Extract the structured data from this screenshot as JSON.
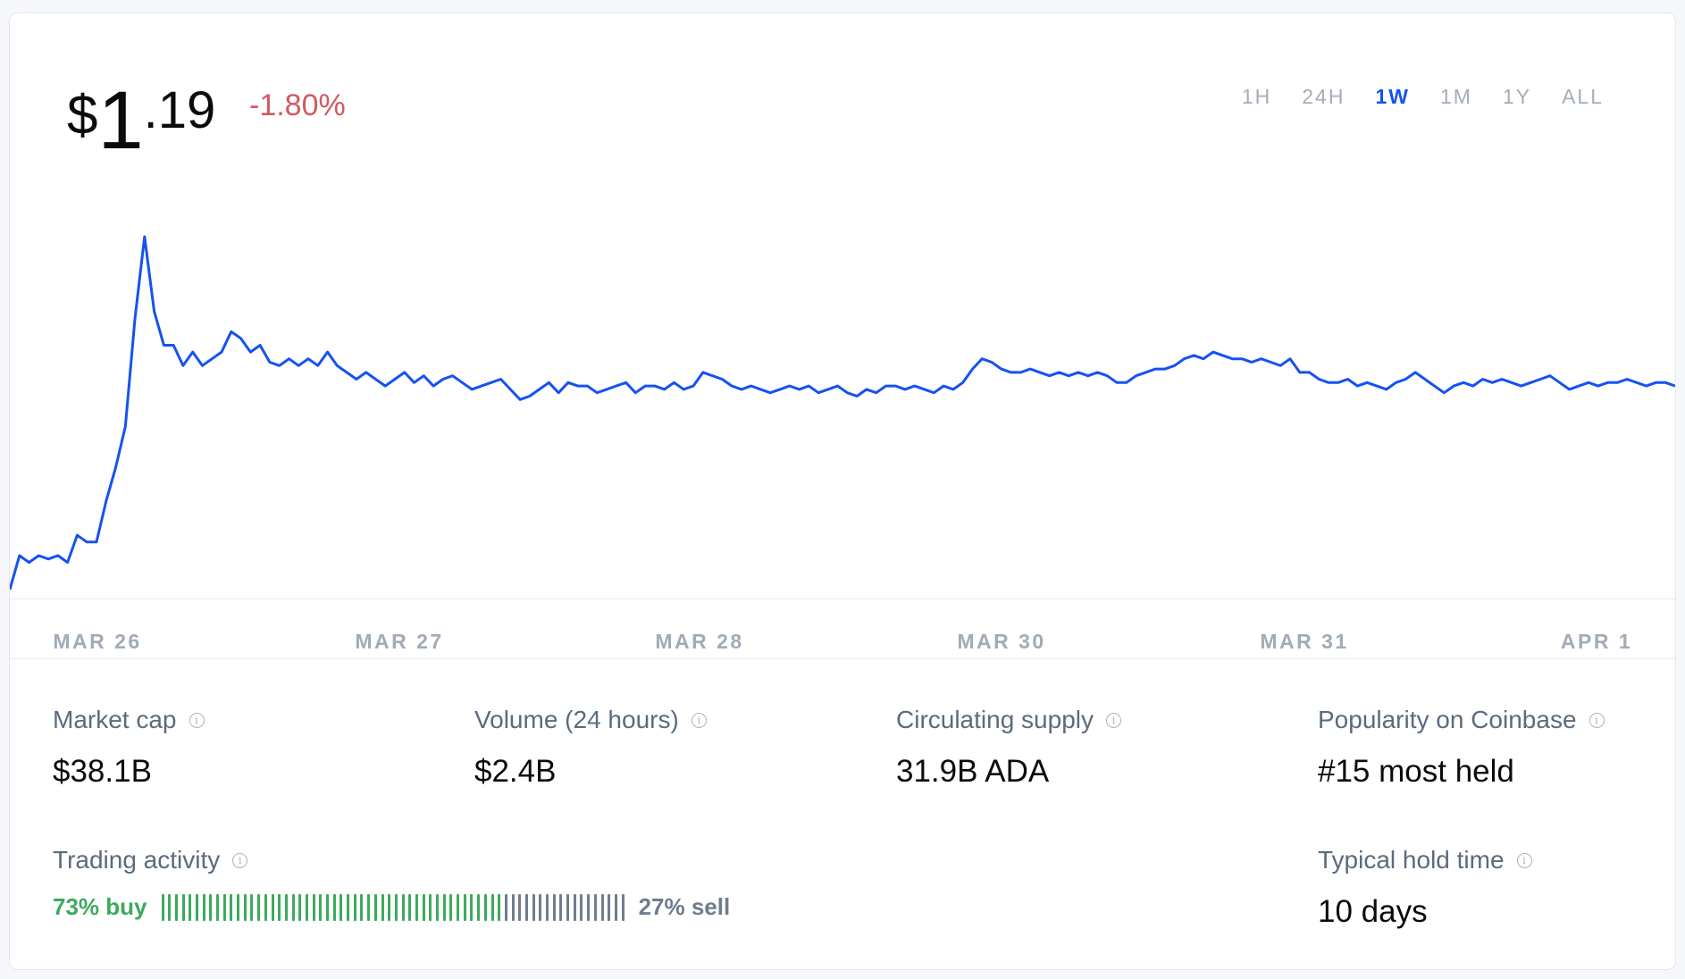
{
  "price": {
    "currency": "$",
    "whole": "1",
    "fraction": ".19"
  },
  "change": "-1.80%",
  "ranges": [
    "1H",
    "24H",
    "1W",
    "1M",
    "1Y",
    "ALL"
  ],
  "active_range": "1W",
  "colors": {
    "line": "#1652f0",
    "negative": "#cf5a63",
    "buy": "#3daa5e",
    "sell": "#6e7d8f"
  },
  "chart_data": {
    "type": "line",
    "x_ticks": [
      "MAR 26",
      "MAR 27",
      "MAR 28",
      "MAR 30",
      "MAR 31",
      "APR 1"
    ],
    "series": [
      {
        "values": [
          0.92,
          0.97,
          0.96,
          0.97,
          0.965,
          0.97,
          0.96,
          1.0,
          0.99,
          0.99,
          1.05,
          1.1,
          1.16,
          1.32,
          1.44,
          1.33,
          1.28,
          1.28,
          1.25,
          1.27,
          1.25,
          1.26,
          1.27,
          1.3,
          1.29,
          1.27,
          1.28,
          1.255,
          1.25,
          1.26,
          1.25,
          1.26,
          1.25,
          1.27,
          1.25,
          1.24,
          1.23,
          1.24,
          1.23,
          1.22,
          1.23,
          1.24,
          1.225,
          1.235,
          1.22,
          1.23,
          1.235,
          1.225,
          1.215,
          1.22,
          1.225,
          1.23,
          1.215,
          1.2,
          1.205,
          1.215,
          1.225,
          1.21,
          1.225,
          1.22,
          1.22,
          1.21,
          1.215,
          1.22,
          1.225,
          1.21,
          1.22,
          1.22,
          1.215,
          1.225,
          1.215,
          1.22,
          1.24,
          1.235,
          1.23,
          1.22,
          1.215,
          1.22,
          1.215,
          1.21,
          1.215,
          1.22,
          1.215,
          1.22,
          1.21,
          1.215,
          1.22,
          1.21,
          1.205,
          1.215,
          1.21,
          1.22,
          1.22,
          1.215,
          1.22,
          1.215,
          1.21,
          1.22,
          1.215,
          1.225,
          1.245,
          1.26,
          1.255,
          1.245,
          1.24,
          1.24,
          1.245,
          1.24,
          1.235,
          1.24,
          1.235,
          1.24,
          1.235,
          1.24,
          1.235,
          1.225,
          1.225,
          1.235,
          1.24,
          1.245,
          1.245,
          1.25,
          1.26,
          1.265,
          1.26,
          1.27,
          1.265,
          1.26,
          1.26,
          1.255,
          1.26,
          1.255,
          1.25,
          1.26,
          1.24,
          1.24,
          1.23,
          1.225,
          1.225,
          1.23,
          1.22,
          1.225,
          1.22,
          1.215,
          1.225,
          1.23,
          1.24,
          1.23,
          1.22,
          1.21,
          1.22,
          1.225,
          1.22,
          1.23,
          1.225,
          1.23,
          1.225,
          1.22,
          1.225,
          1.23,
          1.235,
          1.225,
          1.215,
          1.22,
          1.225,
          1.22,
          1.225,
          1.225,
          1.23,
          1.225,
          1.22,
          1.225,
          1.225,
          1.22
        ]
      }
    ]
  },
  "stats": [
    {
      "label": "Market cap",
      "value": "$38.1B"
    },
    {
      "label": "Volume (24 hours)",
      "value": "$2.4B"
    },
    {
      "label": "Circulating supply",
      "value": "31.9B ADA"
    },
    {
      "label": "Popularity on Coinbase",
      "value": "#15 most held"
    }
  ],
  "trading": {
    "label": "Trading activity",
    "buy_label": "73% buy",
    "sell_label": "27% sell",
    "buy_fraction": 0.73
  },
  "hold": {
    "label": "Typical hold time",
    "value": "10 days"
  },
  "info_glyph": "i"
}
